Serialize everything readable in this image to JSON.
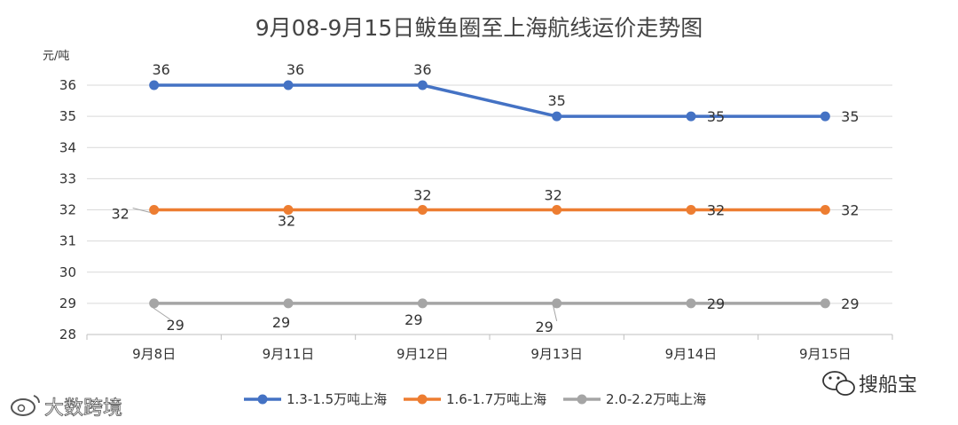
{
  "chart_data": {
    "type": "line",
    "title": "9月08-9月15日鲅鱼圈至上海航线运价走势图",
    "ylabel": "元/吨",
    "categories": [
      "9月8日",
      "9月11日",
      "9月12日",
      "9月13日",
      "9月14日",
      "9月15日"
    ],
    "ylim": [
      28,
      36
    ],
    "yticks": [
      28,
      29,
      30,
      31,
      32,
      33,
      34,
      35,
      36
    ],
    "grid": true,
    "legend_position": "bottom",
    "series": [
      {
        "name": "1.3-1.5万吨上海",
        "color": "#4472C4",
        "values": [
          36,
          36,
          36,
          35,
          35,
          35
        ]
      },
      {
        "name": "1.6-1.7万吨上海",
        "color": "#ED7D31",
        "values": [
          32,
          32,
          32,
          32,
          32,
          32
        ]
      },
      {
        "name": "2.0-2.2万吨上海",
        "color": "#A5A5A5",
        "values": [
          29,
          29,
          29,
          29,
          29,
          29
        ]
      }
    ]
  },
  "watermarks": {
    "left": "大数跨境",
    "right": "搜船宝"
  },
  "icons": {
    "left": "weibo-icon",
    "right": "wechat-icon"
  }
}
